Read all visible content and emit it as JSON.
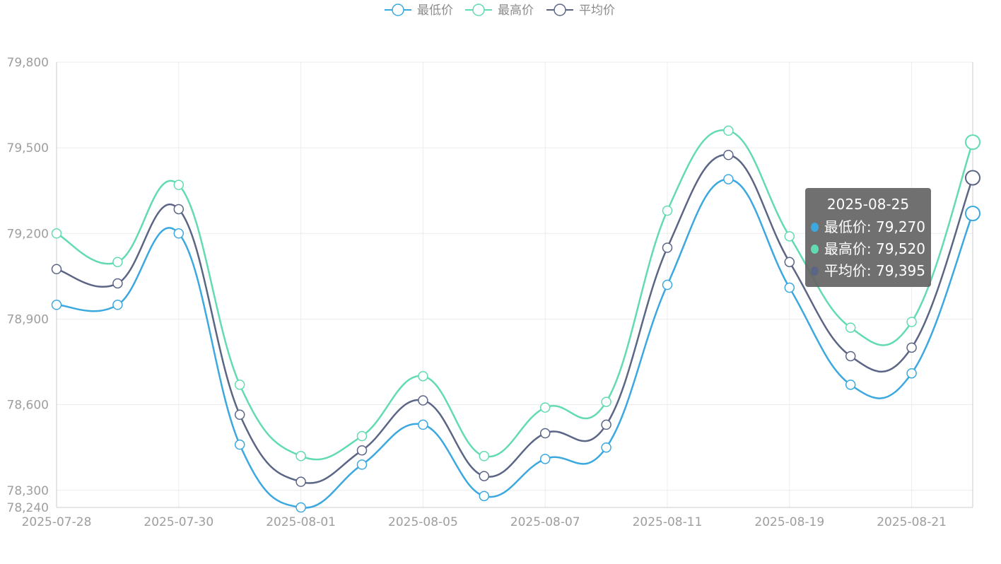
{
  "chart_data": {
    "type": "line",
    "smooth": true,
    "title": "",
    "xlabel": "",
    "ylabel": "",
    "x_tick_labels": [
      "2025-07-28",
      "2025-07-30",
      "2025-08-01",
      "2025-08-05",
      "2025-08-07",
      "2025-08-11",
      "2025-08-19",
      "2025-08-21"
    ],
    "point_count": 16,
    "ylim": [
      78240,
      79800
    ],
    "y_ticks": [
      79800,
      79500,
      79200,
      78900,
      78600,
      78300,
      78240
    ],
    "y_tick_labels": [
      "79,800",
      "79,500",
      "79,200",
      "78,900",
      "78,600",
      "78,300",
      "78,240"
    ],
    "grid": true,
    "legend_position": "top-center",
    "series": [
      {
        "name": "最低价",
        "color": "#3ba8df",
        "values": [
          78950,
          78950,
          79200,
          78460,
          78240,
          78390,
          78530,
          78280,
          78410,
          78450,
          79020,
          79390,
          79010,
          78670,
          78710,
          79270
        ]
      },
      {
        "name": "最高价",
        "color": "#62dbb0",
        "values": [
          79200,
          79100,
          79370,
          78670,
          78420,
          78490,
          78700,
          78420,
          78590,
          78610,
          79280,
          79560,
          79190,
          78870,
          78890,
          79520
        ]
      },
      {
        "name": "平均价",
        "color": "#5b6586",
        "values": [
          79075,
          79025,
          79285,
          78565,
          78330,
          78440,
          78615,
          78350,
          78500,
          78530,
          79150,
          79475,
          79100,
          78770,
          78800,
          79395
        ]
      }
    ],
    "tooltip": {
      "title": "2025-08-25",
      "rows": [
        {
          "label": "最低价: 79,270",
          "color": "#3ba8df"
        },
        {
          "label": "最高价: 79,520",
          "color": "#62dbb0"
        },
        {
          "label": "平均价: 79,395",
          "color": "#5b6586"
        }
      ]
    }
  }
}
